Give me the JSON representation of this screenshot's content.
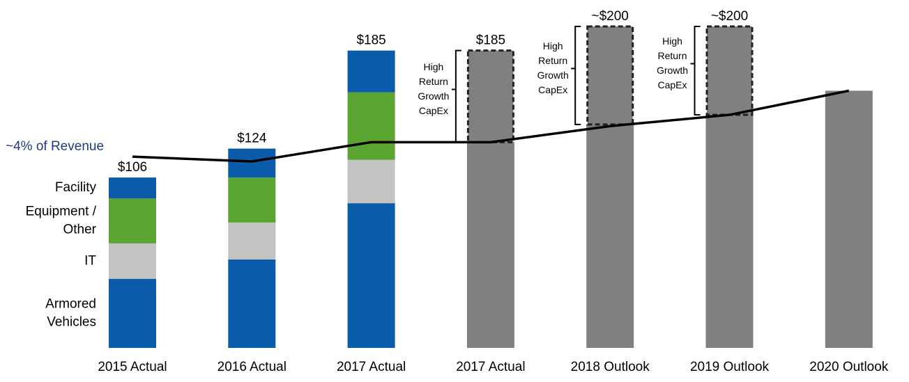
{
  "chart_data": {
    "type": "bar",
    "stacked": true,
    "categories": [
      "2015 Actual",
      "2016 Actual",
      "2017 Actual",
      "2017 Actual",
      "2018 Outlook",
      "2019 Outlook",
      "2020 Outlook"
    ],
    "series": [
      {
        "name": "Armored Vehicles",
        "color": "#0a5cab",
        "values": [
          43,
          55,
          90,
          null,
          null,
          null,
          null
        ]
      },
      {
        "name": "IT",
        "color": "#c3c3c3",
        "values": [
          22,
          23,
          27,
          null,
          null,
          null,
          null
        ]
      },
      {
        "name": "Equipment / Other",
        "color": "#5aa532",
        "values": [
          28,
          28,
          42,
          null,
          null,
          null,
          null
        ]
      },
      {
        "name": "Facility",
        "color": "#0a5cab",
        "values": [
          13,
          18,
          26,
          null,
          null,
          null,
          null
        ]
      },
      {
        "color": "#808080",
        "values": [
          null,
          null,
          null,
          128,
          139,
          145,
          160
        ]
      },
      {
        "name": "High Return Growth CapEx",
        "color": "#808080",
        "dashed": true,
        "values": [
          null,
          null,
          null,
          57,
          61,
          55,
          null
        ]
      }
    ],
    "totals": [
      106,
      124,
      185,
      185,
      200,
      200,
      null
    ],
    "total_labels": [
      "$106",
      "$124",
      "$185",
      "$185",
      "~$200",
      "~$200",
      null
    ],
    "line": {
      "name": "~4% of Revenue",
      "color": "#000000",
      "name_color": "#1f3a8a",
      "values": [
        119,
        116,
        128,
        128,
        138,
        145,
        160
      ]
    },
    "ylim": [
      0,
      215
    ]
  }
}
